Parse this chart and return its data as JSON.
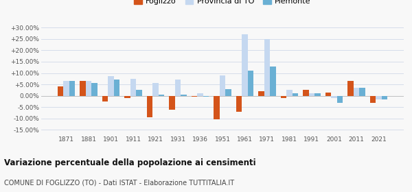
{
  "years": [
    1871,
    1881,
    1901,
    1911,
    1921,
    1931,
    1936,
    1951,
    1961,
    1971,
    1981,
    1991,
    2001,
    2011,
    2021
  ],
  "foglizzo": [
    4.0,
    6.5,
    -2.5,
    -1.0,
    -9.5,
    -6.0,
    -0.5,
    -10.5,
    -7.0,
    2.0,
    -1.0,
    2.5,
    1.5,
    6.5,
    -3.0
  ],
  "provincia_to": [
    6.5,
    6.5,
    8.5,
    7.5,
    5.5,
    7.0,
    1.0,
    9.0,
    27.0,
    25.0,
    2.5,
    1.0,
    -1.0,
    3.5,
    -1.5
  ],
  "piemonte": [
    6.5,
    5.5,
    7.0,
    2.5,
    0.5,
    0.5,
    -0.5,
    3.0,
    11.0,
    13.0,
    1.0,
    1.0,
    -3.0,
    3.5,
    -1.5
  ],
  "foglizzo_color": "#d4541a",
  "provincia_color": "#c5d8f0",
  "piemonte_color": "#6ab0d4",
  "title": "Variazione percentuale della popolazione ai censimenti",
  "subtitle": "COMUNE DI FOGLIZZO (TO) - Dati ISTAT - Elaborazione TUTTITALIA.IT",
  "ytick_vals": [
    -15,
    -10,
    -5,
    0,
    5,
    10,
    15,
    20,
    25,
    30
  ],
  "ylim": [
    -17,
    32
  ],
  "background_color": "#f8f8f8",
  "grid_color": "#d0d8e8",
  "legend_labels": [
    "Foglizzo",
    "Provincia di TO",
    "Piemonte"
  ]
}
